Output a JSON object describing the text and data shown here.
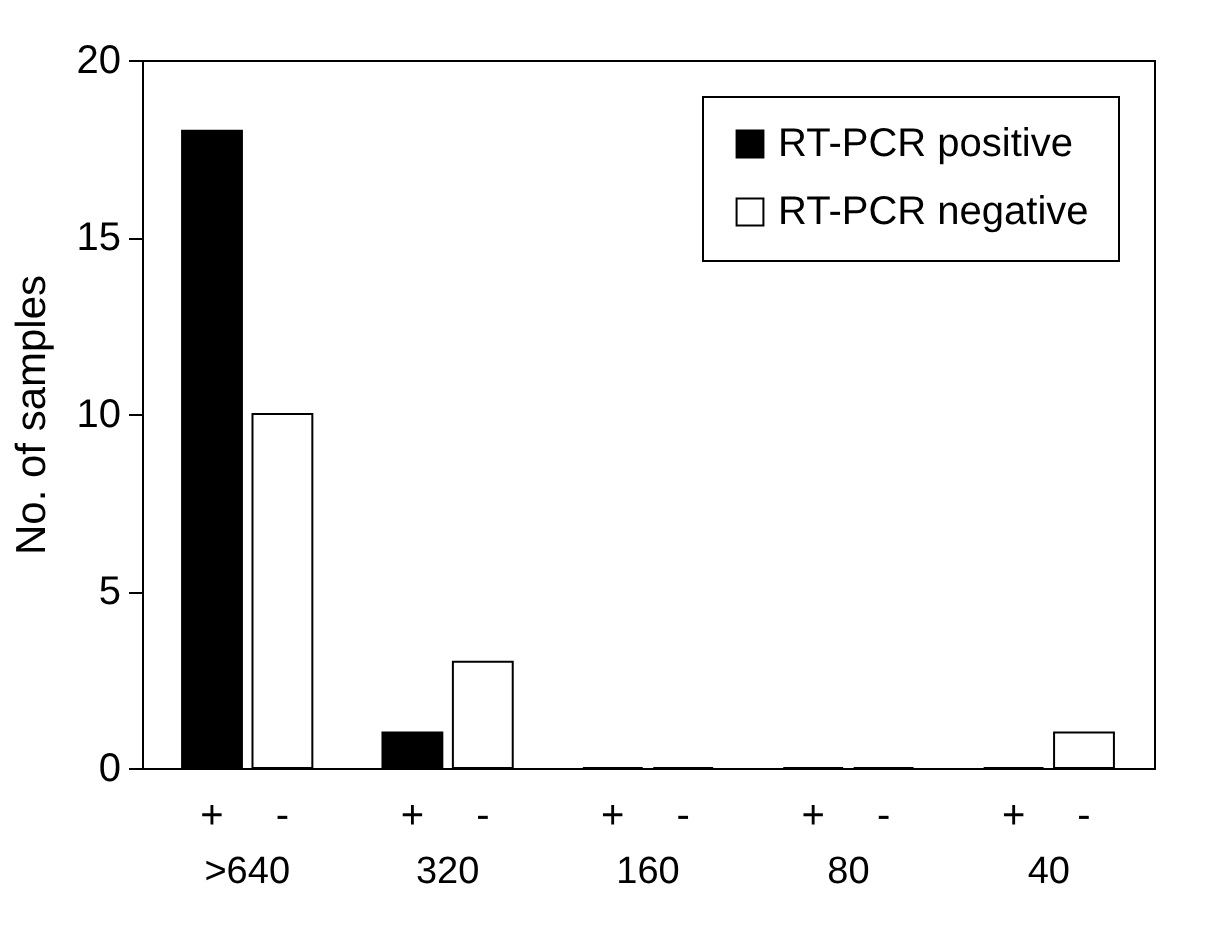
{
  "chart_data": {
    "type": "bar",
    "ylabel": "No. of samples",
    "categories": [
      ">640",
      "320",
      "160",
      "80",
      "40"
    ],
    "series": [
      {
        "name": "RT-PCR positive",
        "color": "#000000",
        "values": [
          18,
          1,
          0,
          0,
          0
        ]
      },
      {
        "name": "RT-PCR negative",
        "color": "#ffffff",
        "values": [
          10,
          3,
          0,
          0,
          1
        ]
      }
    ],
    "ylim": [
      0,
      20
    ],
    "yticks": [
      0,
      5,
      10,
      15,
      20
    ],
    "grid": false,
    "legend": "top right",
    "annotations": [
      "+",
      "-",
      "+",
      "-",
      "+",
      "-",
      "+",
      "-",
      "+",
      "-"
    ]
  }
}
